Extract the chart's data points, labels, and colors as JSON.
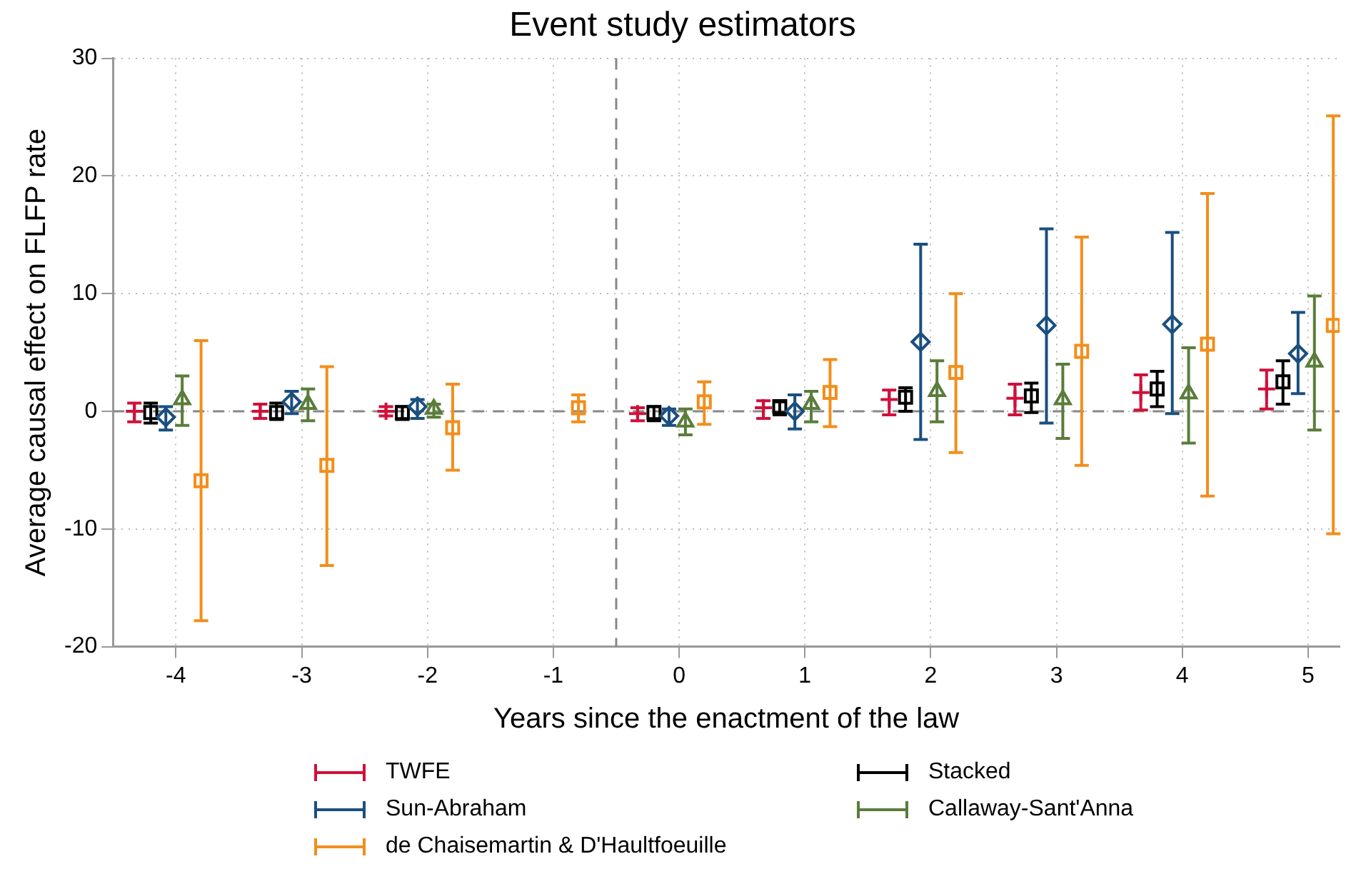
{
  "chart_data": {
    "type": "scatter",
    "title": "Event study estimators",
    "xlabel": "Years since the enactment of the law",
    "ylabel": "Average causal effect on FLFP rate",
    "xlim": [
      -4.5,
      5.25
    ],
    "xticks": [
      -4,
      -3,
      -2,
      -1,
      0,
      1,
      2,
      3,
      4,
      5
    ],
    "ylim": [
      -20,
      30
    ],
    "yticks": [
      -20,
      -10,
      0,
      10,
      20,
      30
    ],
    "grid": true,
    "legend": "bottom",
    "ref_lines": [
      {
        "axis": "x",
        "value": -0.5,
        "color": "#888888",
        "line_style": "dashed"
      },
      {
        "axis": "y",
        "value": 0,
        "color": "#888888",
        "line_style": "dashed"
      }
    ],
    "series": [
      {
        "name": "TWFE",
        "color": "#d0103a",
        "marker": "cross",
        "x": [
          -4.33,
          -3.33,
          -2.33,
          -0.33,
          0.67,
          1.67,
          2.67,
          3.67,
          4.67
        ],
        "values": [
          0,
          0,
          0,
          -0.2,
          0.3,
          1.0,
          1.1,
          1.6,
          1.9
        ],
        "errors": [
          [
            -0.9,
            0.7
          ],
          [
            -0.6,
            0.6
          ],
          [
            -0.4,
            0.4
          ],
          [
            -0.8,
            0.3
          ],
          [
            -0.6,
            0.9
          ],
          [
            -0.3,
            1.8
          ],
          [
            -0.3,
            2.3
          ],
          [
            0.1,
            3.1
          ],
          [
            0.2,
            3.5
          ]
        ]
      },
      {
        "name": "Sun-Abraham",
        "color": "#1a4f7f",
        "marker": "diamond",
        "x": [
          -4.08,
          -3.08,
          -2.08,
          -0.08,
          0.92,
          1.92,
          2.92,
          3.92,
          4.92
        ],
        "values": [
          -0.5,
          0.8,
          0.4,
          -0.4,
          0,
          5.9,
          7.3,
          7.4,
          4.9
        ],
        "errors": [
          [
            -1.6,
            0.4
          ],
          [
            -0.2,
            1.7
          ],
          [
            -0.6,
            1.0
          ],
          [
            -1.2,
            0.2
          ],
          [
            -1.5,
            1.4
          ],
          [
            -2.4,
            14.2
          ],
          [
            -1.0,
            15.5
          ],
          [
            -0.2,
            15.2
          ],
          [
            1.5,
            8.4
          ]
        ]
      },
      {
        "name": "de Chaisemartin &  D'Haultfoeuille",
        "color": "#f28e1c",
        "marker": "square",
        "x": [
          -3.8,
          -2.8,
          -1.8,
          -0.8,
          0.2,
          1.2,
          2.2,
          3.2,
          4.2,
          5.2
        ],
        "values": [
          -5.9,
          -4.6,
          -1.4,
          0.3,
          0.8,
          1.6,
          3.3,
          5.1,
          5.7,
          7.3
        ],
        "errors": [
          [
            -17.8,
            6.0
          ],
          [
            -13.1,
            3.8
          ],
          [
            -5.0,
            2.3
          ],
          [
            -0.9,
            1.4
          ],
          [
            -1.1,
            2.5
          ],
          [
            -1.3,
            4.4
          ],
          [
            -3.5,
            10.0
          ],
          [
            -4.6,
            14.8
          ],
          [
            -7.2,
            18.5
          ],
          [
            -10.4,
            25.1
          ]
        ]
      },
      {
        "name": "Stacked",
        "color": "#000000",
        "marker": "square",
        "x": [
          -4.2,
          -3.2,
          -2.2,
          -0.2,
          0.8,
          1.8,
          2.8,
          3.8,
          4.8
        ],
        "values": [
          -0.1,
          -0.1,
          -0.1,
          -0.1,
          0.4,
          1.2,
          1.3,
          1.9,
          2.5
        ],
        "errors": [
          [
            -1.0,
            0.7
          ],
          [
            -0.7,
            0.7
          ],
          [
            -0.7,
            0.4
          ],
          [
            -0.8,
            0.4
          ],
          [
            -0.3,
            0.8
          ],
          [
            0,
            2.0
          ],
          [
            -0.1,
            2.4
          ],
          [
            0.4,
            3.4
          ],
          [
            0.6,
            4.3
          ]
        ]
      },
      {
        "name": "Callaway-Sant'Anna",
        "color": "#5a7d3a",
        "marker": "triangle",
        "x": [
          -3.95,
          -2.95,
          -1.95,
          0.05,
          1.05,
          2.05,
          3.05,
          4.05,
          5.05
        ],
        "values": [
          1.0,
          0.6,
          0.2,
          -0.9,
          0.6,
          1.7,
          1.0,
          1.5,
          4.2
        ],
        "errors": [
          [
            -1.2,
            3.0
          ],
          [
            -0.8,
            1.9
          ],
          [
            -0.5,
            0.6
          ],
          [
            -2.0,
            0.2
          ],
          [
            -0.9,
            1.7
          ],
          [
            -0.9,
            4.3
          ],
          [
            -2.3,
            4.0
          ],
          [
            -2.7,
            5.4
          ],
          [
            -1.6,
            9.8
          ]
        ]
      }
    ]
  }
}
